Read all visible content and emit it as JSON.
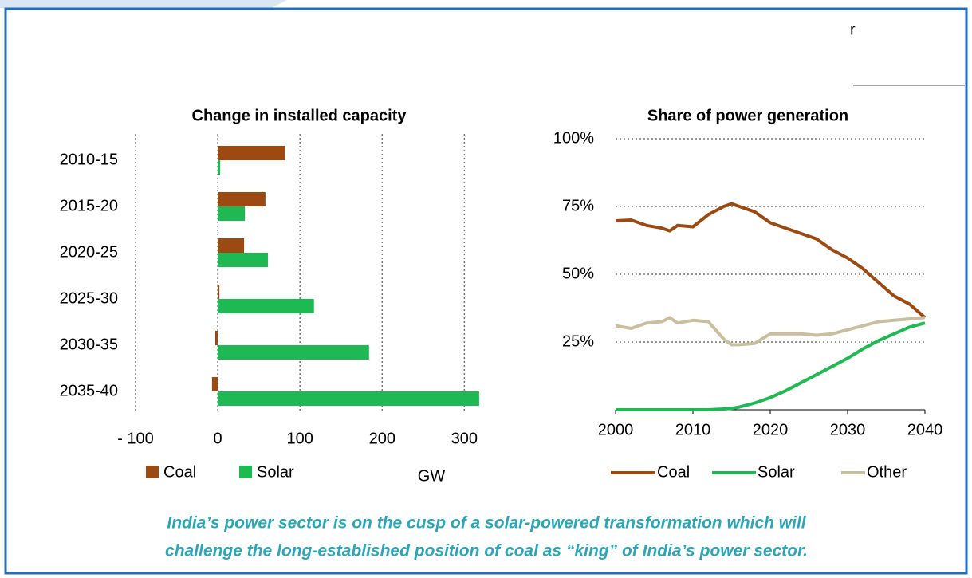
{
  "fragment": "r",
  "caption": [
    "India’s power sector is on the cusp of a solar-powered transformation which will",
    "challenge the long-established position of coal as “king” of India’s power sector."
  ],
  "chart_data": [
    {
      "type": "hbar",
      "title": "Change in installed capacity",
      "categories": [
        "2010-15",
        "2015-20",
        "2020-25",
        "2025-30",
        "2030-35",
        "2035-40"
      ],
      "series": [
        {
          "name": "Coal",
          "color": "#9c4a12",
          "values": [
            82,
            58,
            32,
            2,
            -3,
            -7
          ]
        },
        {
          "name": "Solar",
          "color": "#1fb954",
          "values": [
            3,
            33,
            61,
            117,
            184,
            318
          ]
        }
      ],
      "xlabel": "GW",
      "xlim": [
        -100,
        320
      ],
      "xticks": [
        {
          "value": -100,
          "label": "- 100"
        },
        0,
        100,
        200,
        300
      ],
      "grid": true,
      "legend": "bottom-left"
    },
    {
      "type": "line",
      "title": "Share of power generation",
      "x": [
        2000,
        2002,
        2004,
        2006,
        2007,
        2008,
        2010,
        2012,
        2014,
        2015,
        2016,
        2018,
        2020,
        2022,
        2024,
        2026,
        2028,
        2030,
        2032,
        2034,
        2036,
        2038,
        2040
      ],
      "series": [
        {
          "name": "Coal",
          "color": "#9c4a12",
          "values": [
            69.7,
            70,
            68,
            67,
            66,
            68,
            67.5,
            72,
            75,
            76,
            75,
            73,
            69,
            67,
            65,
            63,
            59,
            56,
            52,
            47,
            42,
            39,
            34
          ]
        },
        {
          "name": "Solar",
          "color": "#1fb954",
          "values": [
            0,
            0,
            0,
            0,
            0,
            0,
            0,
            0,
            0.3,
            0.5,
            1,
            2.5,
            4.5,
            7,
            10,
            13,
            16,
            19,
            22.5,
            25.5,
            28,
            30.5,
            32
          ]
        },
        {
          "name": "Other",
          "color": "#c9bf9f",
          "values": [
            31,
            30,
            32,
            32.5,
            34,
            32,
            33,
            32.5,
            26,
            24,
            24,
            24.5,
            28,
            28,
            28,
            27.5,
            28,
            29.5,
            31,
            32.5,
            33,
            33.5,
            34
          ]
        }
      ],
      "xlim": [
        2000,
        2040
      ],
      "xticks": [
        2000,
        2010,
        2020,
        2030,
        2040
      ],
      "ylim": [
        0,
        100
      ],
      "yticks": [
        {
          "value": 25,
          "label": "25%"
        },
        {
          "value": 50,
          "label": "50%"
        },
        {
          "value": 75,
          "label": "75%"
        },
        {
          "value": 100,
          "label": "100%"
        }
      ],
      "grid": true,
      "legend": "bottom"
    }
  ]
}
